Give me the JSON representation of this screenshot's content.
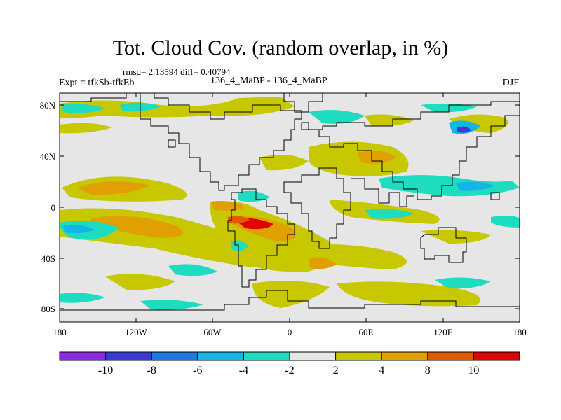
{
  "header": {
    "title": "Tot. Cloud Cov. (random overlap, in %)",
    "stats": "rmsd= 2.13594 diff= 0.40794",
    "experiment": "Expt = tfkSb-tfkEb",
    "period": "136_4_MaBP - 136_4_MaBP",
    "season": "DJF"
  },
  "chart_data": {
    "type": "heatmap",
    "title": "Tot. Cloud Cov. (random overlap, in %)",
    "x_ticks": [
      "180",
      "120W",
      "60W",
      "0",
      "60E",
      "120E",
      "180"
    ],
    "y_ticks": [
      "80N",
      "40N",
      "0",
      "40S",
      "80S"
    ],
    "xlim": [
      -180,
      180
    ],
    "ylim": [
      -90,
      90
    ],
    "colorbar": {
      "levels": [
        -10,
        -8,
        -6,
        -4,
        -2,
        2,
        4,
        8,
        10
      ],
      "labels": [
        "-10",
        "-8",
        "-6",
        "-4",
        "-2",
        "2",
        "4",
        "8",
        "10"
      ],
      "colors": [
        "#8a2be2",
        "#3a3ad6",
        "#1e78e0",
        "#14b4e6",
        "#1edcc0",
        "#e6e6e6",
        "#c8c800",
        "#e0a000",
        "#e05a00",
        "#e00000"
      ]
    },
    "anomalies": [
      {
        "lon": -140,
        "lat": 16,
        "value": 5
      },
      {
        "lon": -150,
        "lat": -18,
        "value": 5
      },
      {
        "lon": -168,
        "lat": -18,
        "value": -5
      },
      {
        "lon": -40,
        "lat": -14,
        "value": 11
      },
      {
        "lon": -45,
        "lat": 2,
        "value": 5
      },
      {
        "lon": 65,
        "lat": 38,
        "value": 5
      },
      {
        "lon": 145,
        "lat": 60,
        "value": -8
      },
      {
        "lon": 120,
        "lat": 12,
        "value": -5
      }
    ]
  },
  "colors": {
    "neutral": "#e6e6e6",
    "yellow": "#c8c800",
    "orange": "#e0a000",
    "red": "#e00000",
    "cyan": "#1edcc0",
    "teal": "#14b4e6",
    "blue": "#3a3ad6"
  }
}
